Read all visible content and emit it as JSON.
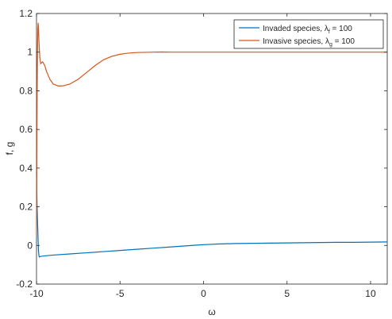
{
  "chart_data": {
    "type": "line",
    "xlabel": "ω",
    "ylabel": "f, g",
    "xlim": [
      -10,
      11
    ],
    "ylim": [
      -0.2,
      1.2
    ],
    "xticks": [
      -10,
      -5,
      0,
      5,
      10
    ],
    "yticks": [
      -0.2,
      0,
      0.2,
      0.4,
      0.6,
      0.8,
      1,
      1.2
    ],
    "xtick_labels": [
      "-10",
      "-5",
      "0",
      "5",
      "10"
    ],
    "ytick_labels": [
      "-0.2",
      "0",
      "0.2",
      "0.4",
      "0.6",
      "0.8",
      "1",
      "1.2"
    ],
    "grid": false,
    "legend_position": "top-right",
    "series": [
      {
        "name_main": "Invaded species, ",
        "name_lambda": "λ",
        "name_sub": "f",
        "name_tail": " = 100",
        "color": "#0072BD",
        "x": [
          -10,
          -9.97,
          -9.93,
          -9.9,
          -9.88,
          -9.85,
          -9.83,
          -9.8,
          -9.7,
          -9.5,
          -9,
          -8,
          -7,
          -6,
          -5,
          -4,
          -3,
          -2,
          -1,
          0,
          1,
          2,
          3,
          4,
          5,
          6,
          7,
          8,
          9,
          10,
          11
        ],
        "y": [
          0.38,
          0.22,
          0.1,
          0.02,
          -0.03,
          -0.055,
          -0.06,
          -0.058,
          -0.056,
          -0.054,
          -0.05,
          -0.044,
          -0.038,
          -0.032,
          -0.026,
          -0.02,
          -0.014,
          -0.008,
          -0.002,
          0.004,
          0.008,
          0.01,
          0.011,
          0.012,
          0.013,
          0.014,
          0.015,
          0.016,
          0.016,
          0.017,
          0.018
        ]
      },
      {
        "name_main": "Invasive species, ",
        "name_lambda": "λ",
        "name_sub": "g",
        "name_tail": " = 100",
        "color": "#D95319",
        "x": [
          -10,
          -9.98,
          -9.96,
          -9.94,
          -9.92,
          -9.9,
          -9.88,
          -9.85,
          -9.8,
          -9.75,
          -9.7,
          -9.65,
          -9.6,
          -9.5,
          -9.4,
          -9.2,
          -9,
          -8.7,
          -8.4,
          -8,
          -7.5,
          -7,
          -6.5,
          -6,
          -5.5,
          -5,
          -4.5,
          -4,
          -3.5,
          -3,
          -2.5,
          -2,
          -1,
          0,
          2,
          4,
          6,
          8,
          10,
          11
        ],
        "y": [
          0.05,
          0.45,
          0.8,
          1.02,
          1.12,
          1.15,
          1.12,
          1.05,
          0.97,
          0.94,
          0.945,
          0.95,
          0.945,
          0.93,
          0.9,
          0.86,
          0.835,
          0.825,
          0.826,
          0.835,
          0.86,
          0.895,
          0.93,
          0.96,
          0.978,
          0.989,
          0.995,
          0.998,
          0.999,
          1.0,
          1.001,
          1.0,
          1.0,
          1.0,
          1.0,
          1.0,
          1.0,
          1.0,
          1.0,
          1.0
        ]
      }
    ]
  }
}
